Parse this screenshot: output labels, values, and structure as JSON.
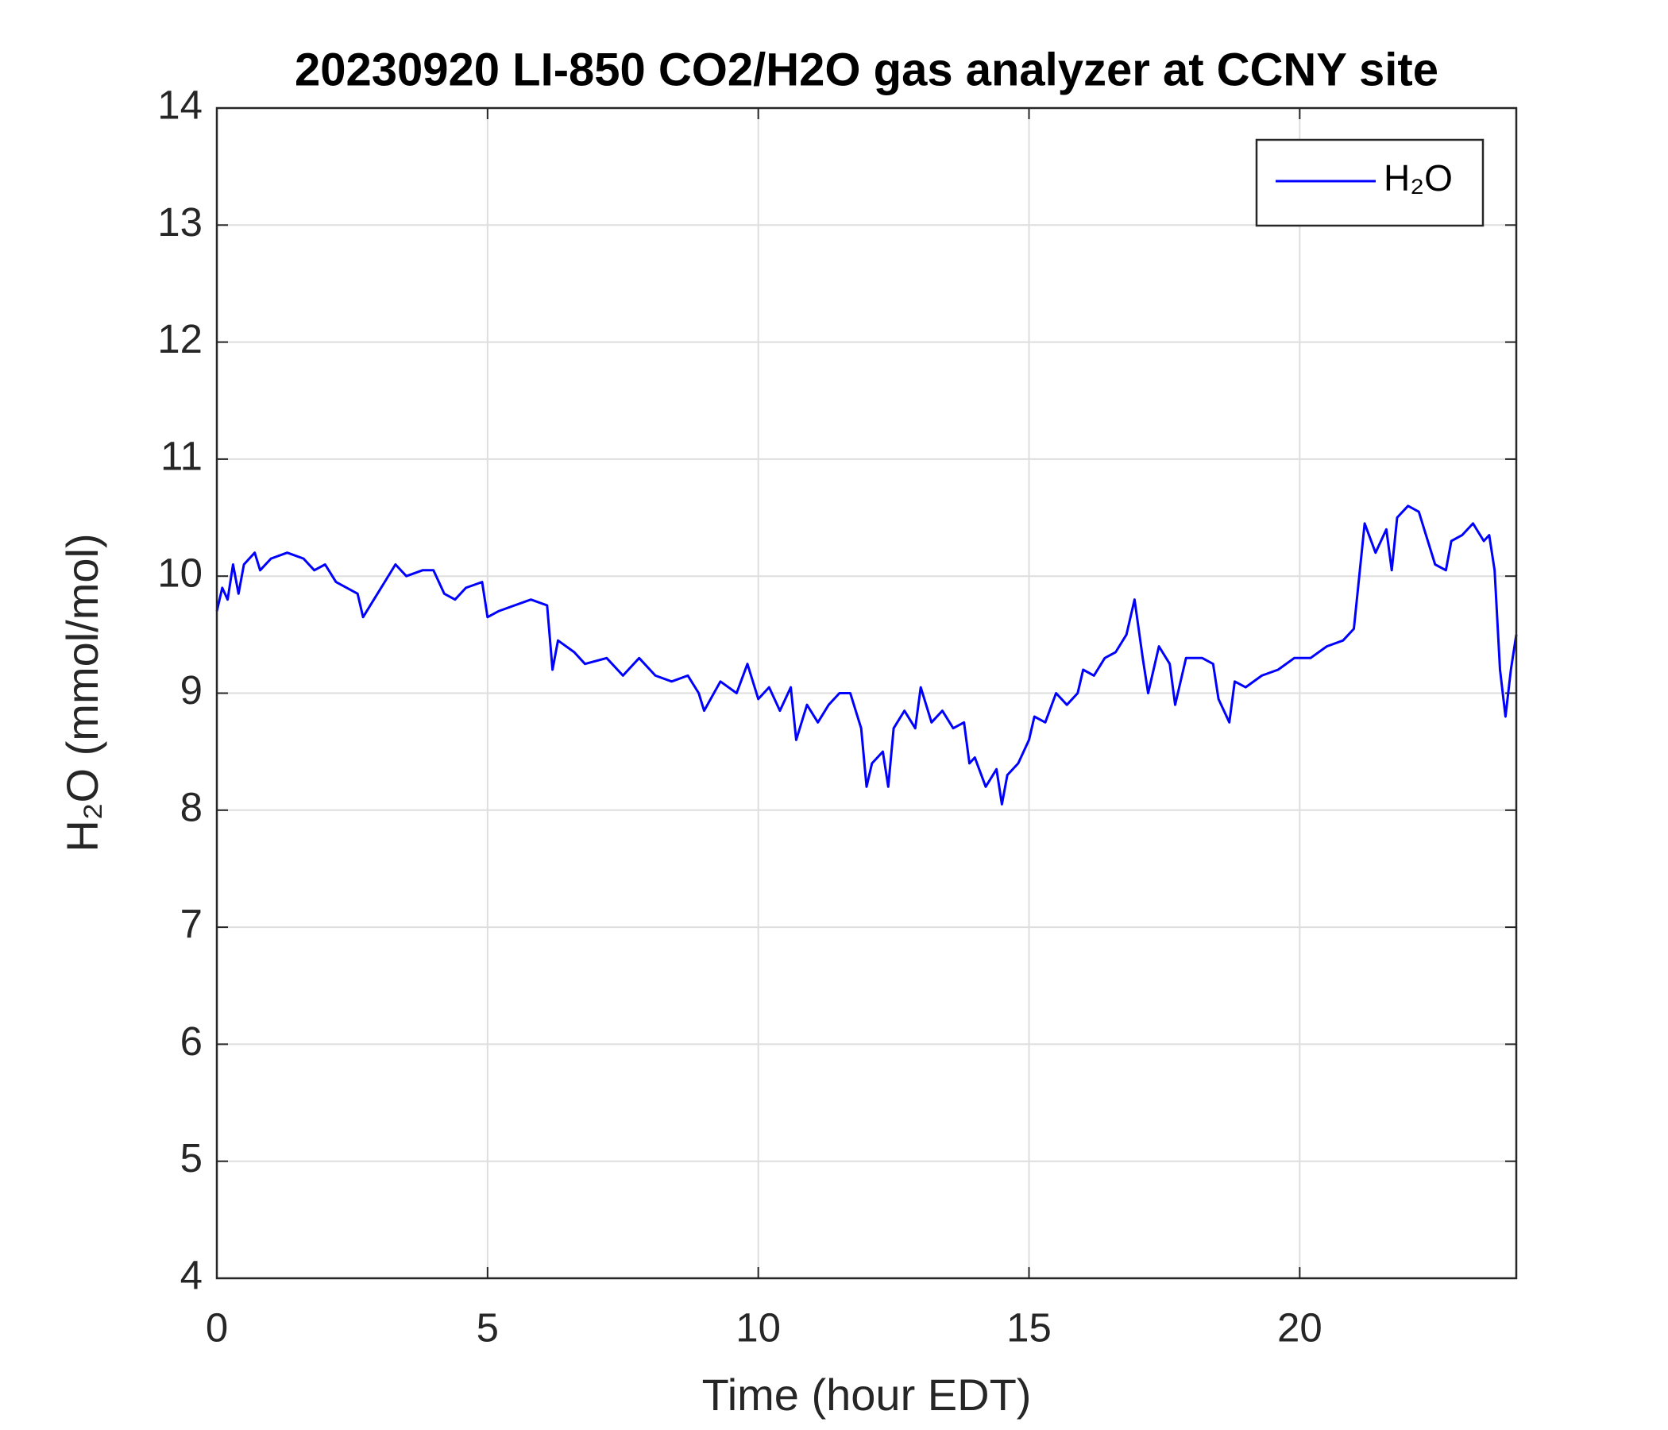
{
  "chart_data": {
    "type": "line",
    "title": "20230920 LI-850 CO2/H2O gas analyzer at CCNY site",
    "x_label": "Time (hour EDT)",
    "y_label": "H₂O (mmol/mol)",
    "xlim": [
      0,
      24
    ],
    "xticks": [
      0,
      5,
      10,
      15,
      20
    ],
    "ylim": [
      4,
      14
    ],
    "yticks": [
      4,
      5,
      6,
      7,
      8,
      9,
      10,
      11,
      12,
      13,
      14
    ],
    "grid": true,
    "legend": "upper right",
    "x": [
      0,
      0.1,
      0.2,
      0.3,
      0.4,
      0.5,
      0.7,
      0.8,
      1.0,
      1.3,
      1.6,
      1.8,
      2.0,
      2.2,
      2.4,
      2.6,
      2.7,
      2.9,
      3.1,
      3.3,
      3.5,
      3.8,
      4.0,
      4.2,
      4.4,
      4.6,
      4.9,
      5.0,
      5.2,
      5.5,
      5.8,
      6.1,
      6.2,
      6.3,
      6.6,
      6.8,
      7.2,
      7.5,
      7.8,
      8.1,
      8.4,
      8.7,
      8.9,
      9.0,
      9.3,
      9.6,
      9.8,
      10.0,
      10.2,
      10.4,
      10.6,
      10.7,
      10.9,
      11.1,
      11.3,
      11.5,
      11.7,
      11.9,
      12.0,
      12.1,
      12.3,
      12.4,
      12.5,
      12.7,
      12.9,
      13.0,
      13.2,
      13.4,
      13.6,
      13.8,
      13.9,
      14.0,
      14.2,
      14.4,
      14.5,
      14.6,
      14.8,
      15.0,
      15.1,
      15.3,
      15.5,
      15.7,
      15.9,
      16.0,
      16.2,
      16.4,
      16.6,
      16.8,
      16.95,
      17.1,
      17.2,
      17.4,
      17.6,
      17.7,
      17.9,
      18.2,
      18.4,
      18.5,
      18.7,
      18.8,
      19.0,
      19.3,
      19.6,
      19.9,
      20.2,
      20.5,
      20.8,
      21.0,
      21.1,
      21.2,
      21.4,
      21.6,
      21.7,
      21.8,
      22.0,
      22.2,
      22.3,
      22.5,
      22.7,
      22.8,
      23.0,
      23.2,
      23.4,
      23.5,
      23.6,
      23.7,
      23.8,
      23.9,
      24.0
    ],
    "series": [
      {
        "name": "H₂O",
        "color": "#0000ff",
        "values": [
          9.7,
          9.9,
          9.8,
          10.1,
          9.85,
          10.1,
          10.2,
          10.05,
          10.15,
          10.2,
          10.15,
          10.05,
          10.1,
          9.95,
          9.9,
          9.85,
          9.65,
          9.8,
          9.95,
          10.1,
          10.0,
          10.05,
          10.05,
          9.85,
          9.8,
          9.9,
          9.95,
          9.65,
          9.7,
          9.75,
          9.8,
          9.75,
          9.2,
          9.45,
          9.35,
          9.25,
          9.3,
          9.15,
          9.3,
          9.15,
          9.1,
          9.15,
          9.0,
          8.85,
          9.1,
          9.0,
          9.25,
          8.95,
          9.05,
          8.85,
          9.05,
          8.6,
          8.9,
          8.75,
          8.9,
          9.0,
          9.0,
          8.7,
          8.2,
          8.4,
          8.5,
          8.2,
          8.7,
          8.85,
          8.7,
          9.05,
          8.75,
          8.85,
          8.7,
          8.75,
          8.4,
          8.45,
          8.2,
          8.35,
          8.05,
          8.3,
          8.4,
          8.6,
          8.8,
          8.75,
          9.0,
          8.9,
          9.0,
          9.2,
          9.15,
          9.3,
          9.35,
          9.5,
          9.8,
          9.3,
          9.0,
          9.4,
          9.25,
          8.9,
          9.3,
          9.3,
          9.25,
          8.95,
          8.75,
          9.1,
          9.05,
          9.15,
          9.2,
          9.3,
          9.3,
          9.4,
          9.45,
          9.55,
          10.0,
          10.45,
          10.2,
          10.4,
          10.05,
          10.5,
          10.6,
          10.55,
          10.4,
          10.1,
          10.05,
          10.3,
          10.35,
          10.45,
          10.3,
          10.35,
          10.05,
          9.2,
          8.8,
          9.2,
          9.5
        ]
      }
    ]
  }
}
